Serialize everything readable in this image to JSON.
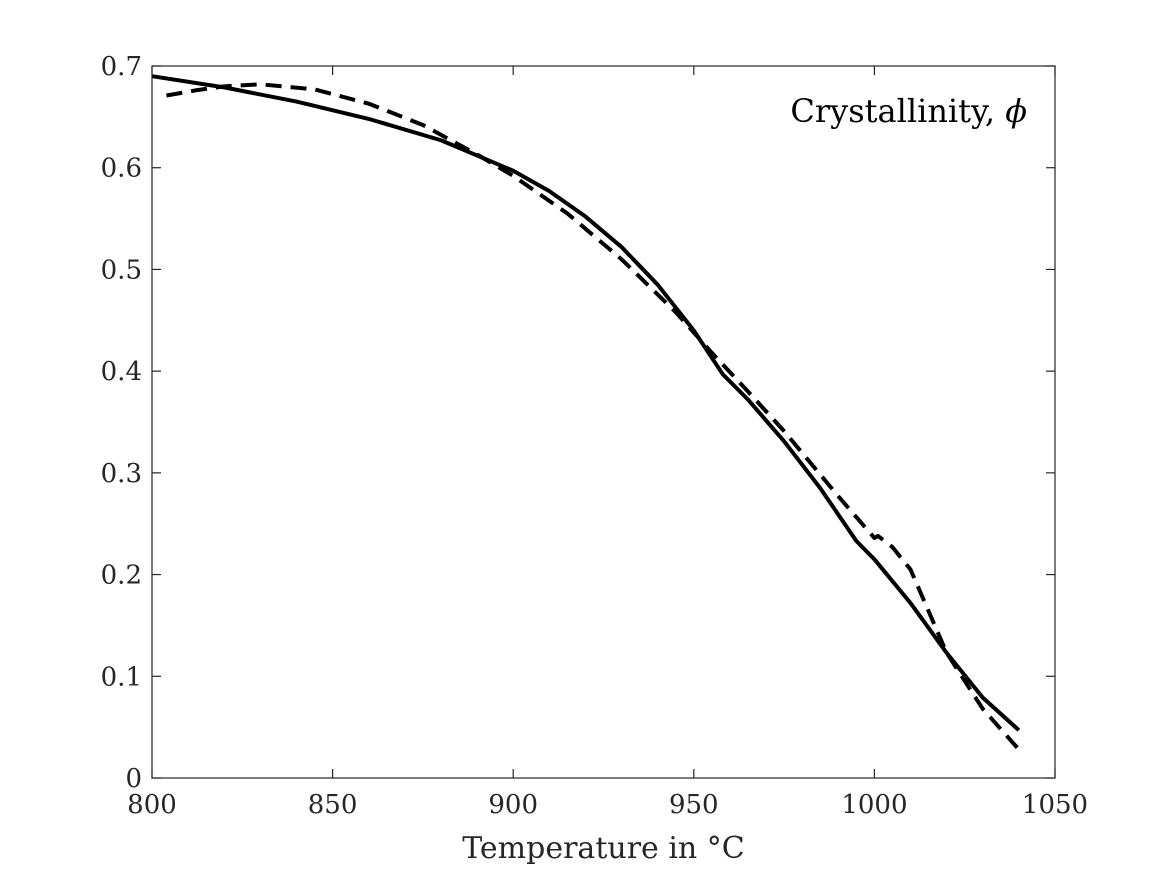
{
  "chart_data": {
    "type": "line",
    "xlabel": "Temperature in °C",
    "ylabel": "",
    "xlim": [
      800,
      1050
    ],
    "ylim": [
      0,
      0.7
    ],
    "xticks": [
      800,
      850,
      900,
      950,
      1000,
      1050
    ],
    "yticks": [
      0,
      0.1,
      0.2,
      0.3,
      0.4,
      0.5,
      0.6,
      0.7
    ],
    "xtick_labels": [
      "800",
      "850",
      "900",
      "950",
      "1000",
      "1050"
    ],
    "ytick_labels": [
      "0",
      "0.1",
      "0.2",
      "0.3",
      "0.4",
      "0.5",
      "0.6",
      "0.7"
    ],
    "grid": false,
    "annotation": {
      "text": "Crystallinity, ",
      "symbol": "ϕ"
    },
    "colors": {
      "line": "#000000",
      "axis": "#262626"
    },
    "series": [
      {
        "style": "solid",
        "x": [
          800,
          820,
          840,
          860,
          880,
          900,
          910,
          920,
          930,
          940,
          950,
          958,
          965,
          975,
          985,
          995,
          1000,
          1010,
          1020,
          1030,
          1040
        ],
        "y": [
          0.69,
          0.679,
          0.665,
          0.648,
          0.627,
          0.597,
          0.577,
          0.552,
          0.522,
          0.485,
          0.44,
          0.397,
          0.372,
          0.331,
          0.285,
          0.233,
          0.215,
          0.172,
          0.123,
          0.079,
          0.047
        ]
      },
      {
        "style": "dashed",
        "x": [
          804,
          812,
          820,
          830,
          845,
          860,
          875,
          890,
          900,
          915,
          930,
          945,
          955,
          965,
          975,
          990,
          1000,
          1001,
          1005,
          1010,
          1020,
          1030,
          1040
        ],
        "y": [
          0.671,
          0.676,
          0.68,
          0.682,
          0.677,
          0.663,
          0.642,
          0.613,
          0.592,
          0.555,
          0.51,
          0.458,
          0.418,
          0.38,
          0.341,
          0.277,
          0.236,
          0.238,
          0.227,
          0.205,
          0.123,
          0.068,
          0.028
        ]
      }
    ]
  }
}
